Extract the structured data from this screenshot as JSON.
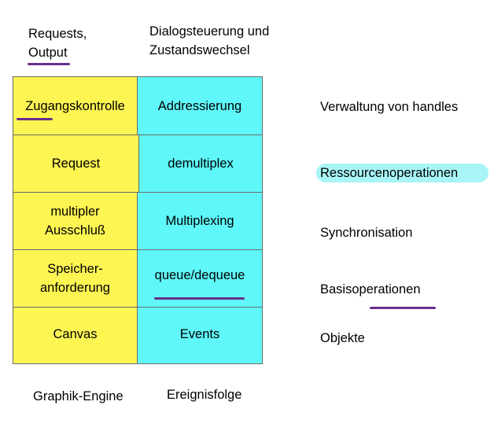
{
  "top_labels": {
    "left": "Requests,\nOutput",
    "right": "Dialogsteuerung und\nZustandswechsel"
  },
  "grid": {
    "rows": [
      {
        "left": "Zugangskontrolle",
        "right": "Addressierung"
      },
      {
        "left": "Request",
        "right": "demultiplex"
      },
      {
        "left": "multipler\nAusschluß",
        "right": "Multiplexing"
      },
      {
        "left": "Speicher-\nanforderung",
        "right": "queue/dequeue"
      },
      {
        "left": "Canvas",
        "right": "Events"
      }
    ],
    "colors": {
      "left": "#fdf552",
      "right": "#5ff7f9"
    }
  },
  "side_labels": [
    "Verwaltung von handles",
    "Ressourcenoperationen",
    "Synchronisation",
    "Basisoperationen",
    "Objekte"
  ],
  "bottom_labels": {
    "left": "Graphik-Engine",
    "right": "Ereignisfolge"
  },
  "annotation_colors": {
    "underline": "#6a2e8c",
    "highlight": "#a8f5f7"
  }
}
